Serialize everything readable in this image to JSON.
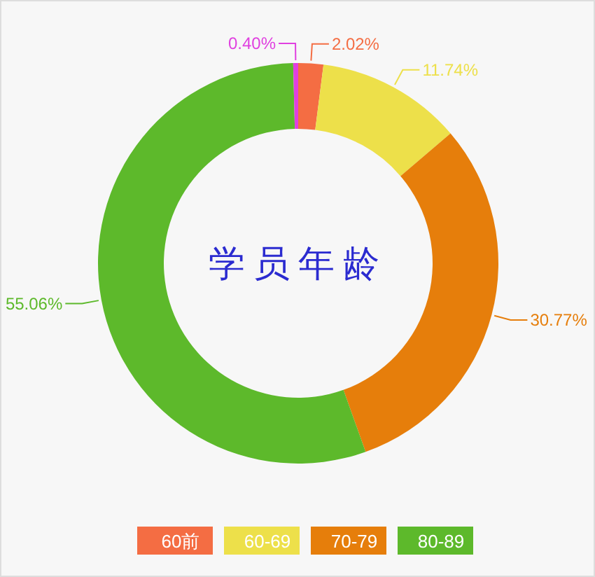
{
  "chart_data": {
    "type": "donut",
    "title": "学员年龄",
    "categories": [
      "60前",
      "60-69",
      "70-79",
      "80-89",
      null
    ],
    "values": [
      2.02,
      11.74,
      30.77,
      55.06,
      0.4
    ],
    "colors": [
      "#f46d43",
      "#ede04a",
      "#e67e0b",
      "#5db92b",
      "#e040e0"
    ],
    "value_labels": [
      "2.02%",
      "11.74%",
      "30.77%",
      "55.06%",
      "0.40%"
    ],
    "legend": "bottom"
  }
}
